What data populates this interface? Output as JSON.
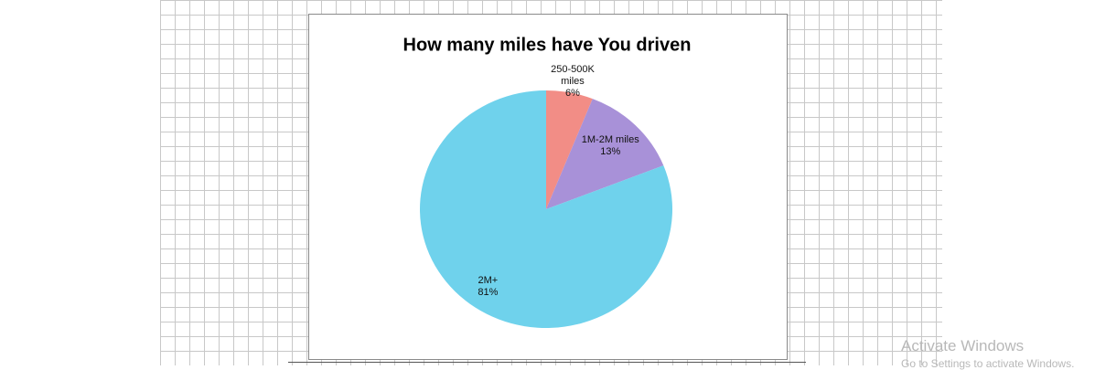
{
  "chart_data": {
    "type": "pie",
    "title": "How many miles have You driven",
    "categories": [
      "250-500K miles",
      "1M-2M miles",
      "2M+"
    ],
    "values": [
      6,
      13,
      81
    ],
    "value_labels": [
      "6%",
      "13%",
      "81%"
    ],
    "colors": [
      "#f28d86",
      "#a891d8",
      "#6fd2ec"
    ]
  },
  "watermark": {
    "title": "Activate Windows",
    "subtitle": "Go to Settings to activate Windows."
  }
}
